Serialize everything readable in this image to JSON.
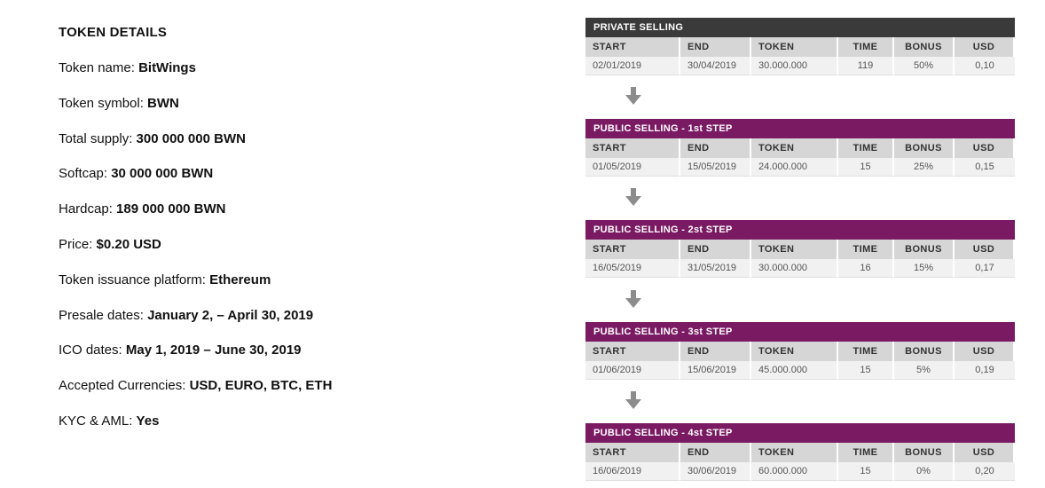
{
  "token_details": {
    "title": "TOKEN DETAILS",
    "rows": [
      {
        "label": "Token name: ",
        "value": "BitWings"
      },
      {
        "label": "Token symbol: ",
        "value": "BWN"
      },
      {
        "label": "Total supply: ",
        "value": "300 000 000 BWN"
      },
      {
        "label": "Softcap: ",
        "value": "30 000 000 BWN"
      },
      {
        "label": "Hardcap: ",
        "value": "189 000 000 BWN"
      },
      {
        "label": "Price: ",
        "value": "$0.20 USD"
      },
      {
        "label": "Token issuance platform: ",
        "value": "Ethereum"
      },
      {
        "label": "Presale dates: ",
        "value": "January 2,  – April 30, 2019"
      },
      {
        "label": "ICO dates: ",
        "value": "May 1, 2019 – June 30, 2019"
      },
      {
        "label": "Accepted Currencies: ",
        "value": "USD, EURO, BTC, ETH"
      },
      {
        "label": "KYC & AML: ",
        "value": "Yes"
      }
    ]
  },
  "columns": [
    "START",
    "END",
    "TOKEN",
    "TIME",
    "BONUS",
    "USD"
  ],
  "colors": {
    "private_header": "#3a3a3a",
    "public_header": "#7a1a63",
    "arrow": "#8c8c8c"
  },
  "phases": [
    {
      "title": "PRIVATE SELLING",
      "start": "02/01/2019",
      "end": "30/04/2019",
      "token": "30.000.000",
      "time": "119",
      "bonus": "50%",
      "usd": "0,10"
    },
    {
      "title": "PUBLIC SELLING  - 1st STEP",
      "start": "01/05/2019",
      "end": "15/05/2019",
      "token": "24.000.000",
      "time": "15",
      "bonus": "25%",
      "usd": "0,15"
    },
    {
      "title": "PUBLIC SELLING  - 2st STEP",
      "start": "16/05/2019",
      "end": "31/05/2019",
      "token": "30.000.000",
      "time": "16",
      "bonus": "15%",
      "usd": "0,17"
    },
    {
      "title": "PUBLIC SELLING  - 3st STEP",
      "start": "01/06/2019",
      "end": "15/06/2019",
      "token": "45.000.000",
      "time": "15",
      "bonus": "5%",
      "usd": "0,19"
    },
    {
      "title": "PUBLIC SELLING  - 4st STEP",
      "start": "16/06/2019",
      "end": "30/06/2019",
      "token": "60.000.000",
      "time": "15",
      "bonus": "0%",
      "usd": "0,20"
    }
  ]
}
